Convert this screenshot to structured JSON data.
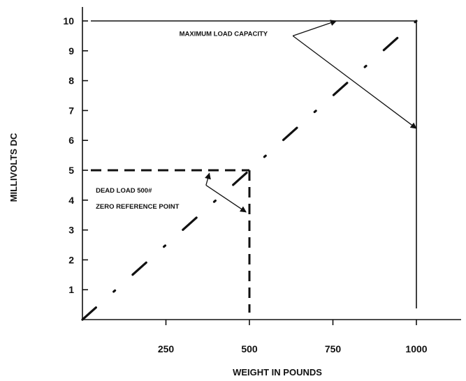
{
  "chart_data": {
    "type": "line",
    "xlabel": "WEIGHT IN POUNDS",
    "ylabel": "MILLIVOLTS DC",
    "xlim": [
      0,
      1000
    ],
    "ylim": [
      0,
      10
    ],
    "x_ticks": [
      250,
      500,
      750,
      1000
    ],
    "y_ticks": [
      1,
      2,
      3,
      4,
      5,
      6,
      7,
      8,
      9,
      10
    ],
    "grid": false,
    "series": [
      {
        "style": "dash-dot",
        "x": [
          0,
          1000
        ],
        "y": [
          0,
          10
        ]
      }
    ],
    "guides": {
      "max_load": {
        "x": 1000,
        "y": 10
      },
      "dead_load": {
        "x": 500,
        "y": 5
      }
    },
    "annotations": [
      {
        "id": "max",
        "lines": [
          "MAXIMUM LOAD CAPACITY"
        ],
        "text_anchor": {
          "x": 290,
          "y": 9.5
        },
        "origin": {
          "x": 630,
          "y": 9.5
        },
        "targets": [
          {
            "x": 760,
            "y": 10
          },
          {
            "x": 1000,
            "y": 6.4
          }
        ]
      },
      {
        "id": "dead",
        "lines": [
          "DEAD LOAD 500#",
          "ZERO REFERENCE POINT"
        ],
        "text_anchor": {
          "x": 40,
          "y": 4.25
        },
        "origin": {
          "x": 370,
          "y": 4.5
        },
        "targets": [
          {
            "x": 380,
            "y": 4.9
          },
          {
            "x": 490,
            "y": 3.6
          }
        ]
      }
    ]
  }
}
